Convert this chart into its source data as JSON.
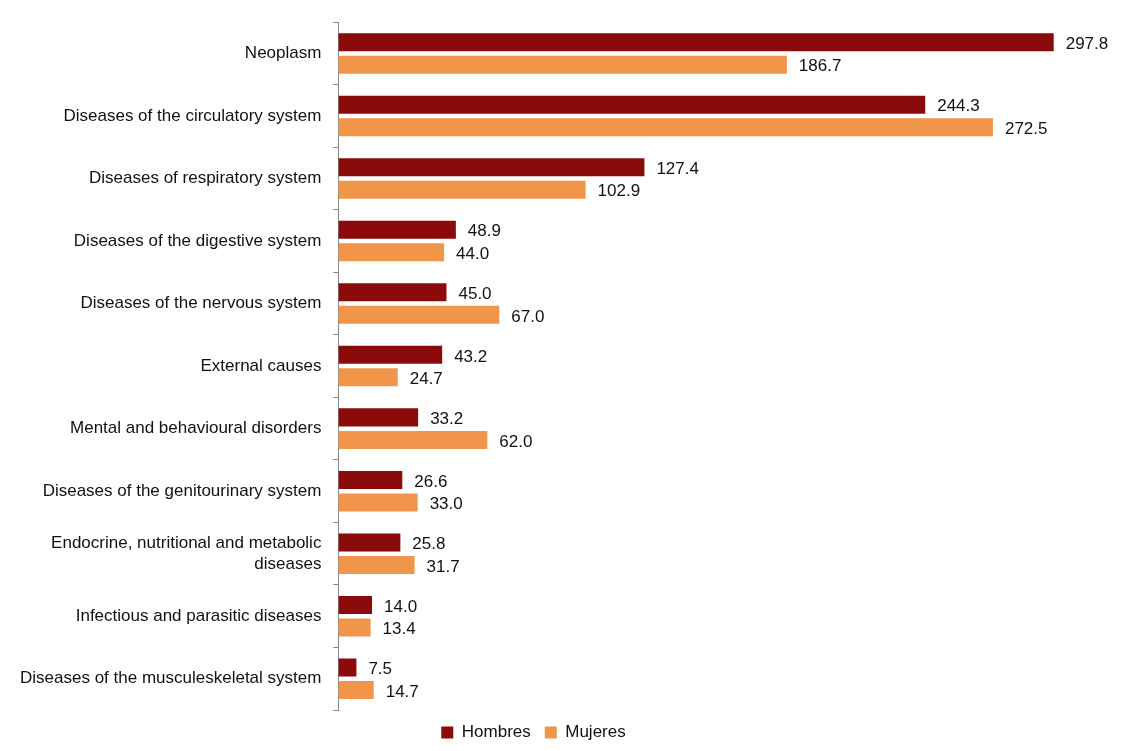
{
  "chart_data": {
    "type": "bar",
    "orientation": "horizontal",
    "categories": [
      "Neoplasm",
      "Diseases of the circulatory system",
      "Diseases of respiratory system",
      "Diseases of the digestive system",
      "Diseases of the nervous system",
      "External causes",
      "Mental and behavioural disorders",
      "Diseases of the genitourinary system",
      "Endocrine, nutritional and metabolic diseases",
      "Infectious and parasitic diseases",
      "Diseases of the musculeskeletal system"
    ],
    "series": [
      {
        "name": "Hombres",
        "color": "#8b0a0a",
        "values": [
          297.8,
          244.3,
          127.4,
          48.9,
          45.0,
          43.2,
          33.2,
          26.6,
          25.8,
          14.0,
          7.5
        ],
        "value_labels": [
          "297.8",
          "244.3",
          "127.4",
          "48.9",
          "45.0",
          "43.2",
          "33.2",
          "26.6",
          "25.8",
          "14.0",
          "7.5"
        ]
      },
      {
        "name": "Mujeres",
        "color": "#f0954a",
        "values": [
          186.7,
          272.5,
          102.9,
          44.0,
          67.0,
          24.7,
          62.0,
          33.0,
          31.7,
          13.4,
          14.7
        ],
        "value_labels": [
          "186.7",
          "272.5",
          "102.9",
          "44.0",
          "67.0",
          "24.7",
          "62.0",
          "33.0",
          "31.7",
          "13.4",
          "14.7"
        ]
      }
    ],
    "tick_labels": "y",
    "grid": false,
    "legend": "bottom"
  }
}
